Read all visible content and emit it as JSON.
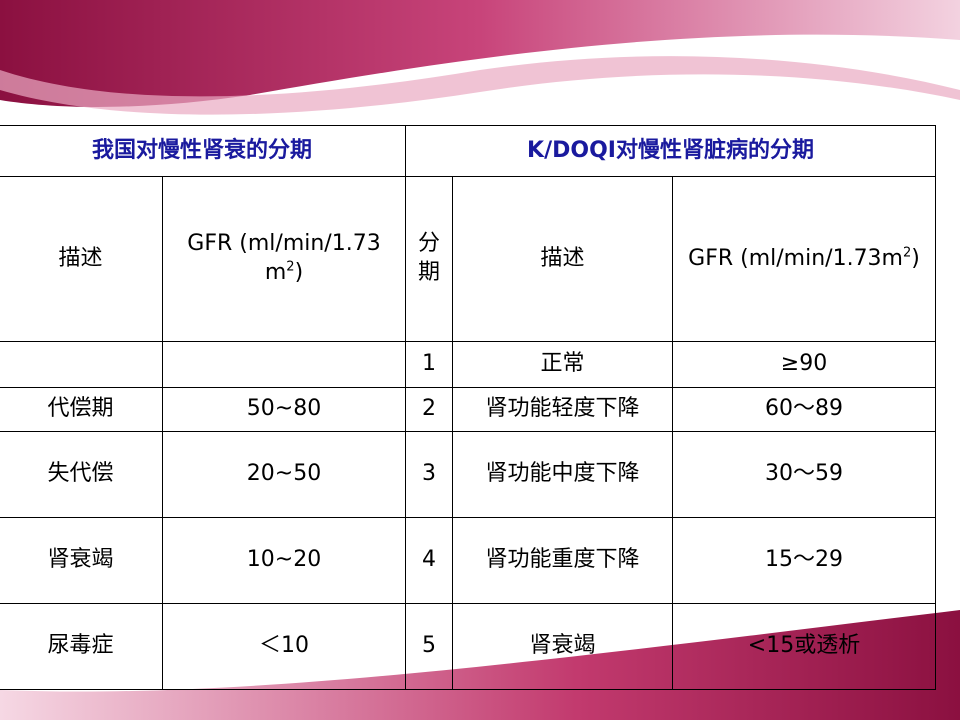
{
  "table": {
    "group_headers": [
      "我国对慢性肾衰的分期",
      "K/DOQI对慢性肾脏病的分期"
    ],
    "columns": [
      {
        "text": "描述"
      },
      {
        "text": "GFR (ml/min/1.73 m",
        "sup": "2",
        "tail": ")"
      },
      {
        "text": "分期"
      },
      {
        "text": "描述"
      },
      {
        "text": "GFR (ml/min/1.73m",
        "sup": "2",
        "tail": ")"
      }
    ],
    "rows": [
      [
        null,
        null,
        "1",
        "正常",
        "≥90"
      ],
      [
        "代偿期",
        "50~80",
        "2",
        "肾功能轻度下降",
        "60～89"
      ],
      [
        "失代偿",
        "20~50",
        "3",
        "肾功能中度下降",
        "30～59"
      ],
      [
        "肾衰竭",
        "10~20",
        "4",
        "肾功能重度下降",
        "15～29"
      ],
      [
        "尿毒症",
        "＜10",
        "5",
        "肾衰竭",
        "<15或透析"
      ]
    ]
  }
}
